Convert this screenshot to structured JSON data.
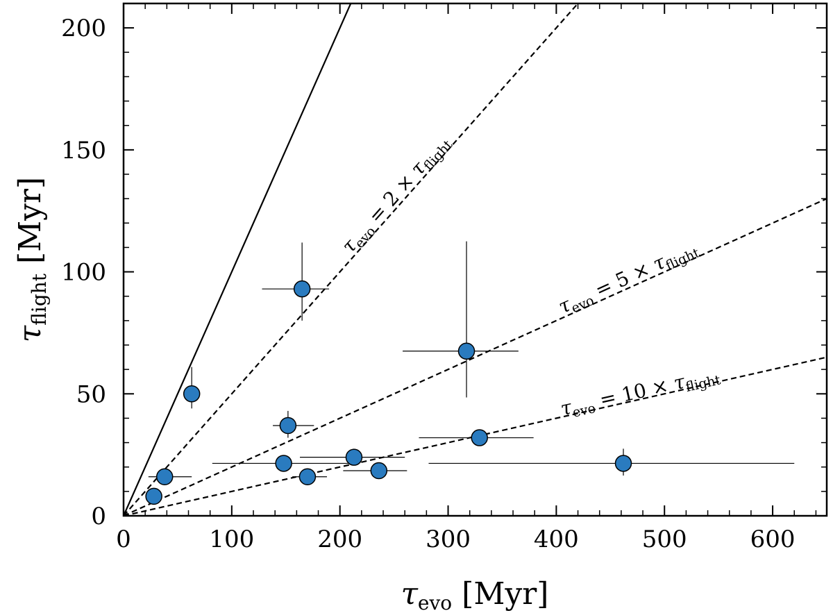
{
  "chart_data": {
    "type": "scatter",
    "title": "",
    "xlim": [
      0,
      650
    ],
    "ylim": [
      0,
      210
    ],
    "xticks": [
      0,
      100,
      200,
      300,
      400,
      500,
      600
    ],
    "yticks": [
      0,
      50,
      100,
      150,
      200
    ],
    "xlabel": {
      "sym": "τ",
      "sub": "evo",
      "unit": "[Myr]"
    },
    "ylabel": {
      "sym": "τ",
      "sub": "flight",
      "unit": "[Myr]"
    },
    "reference_lines": [
      {
        "ratio": 1,
        "style": "solid",
        "label": null
      },
      {
        "ratio": 2,
        "style": "dashed",
        "label": {
          "lhs": "τ",
          "lhs_sub": "evo",
          "op": " = 2 × ",
          "rhs": "τ",
          "rhs_sub": "flight"
        }
      },
      {
        "ratio": 5,
        "style": "dashed",
        "label": {
          "lhs": "τ",
          "lhs_sub": "evo",
          "op": " = 5 × ",
          "rhs": "τ",
          "rhs_sub": "flight"
        }
      },
      {
        "ratio": 10,
        "style": "dashed",
        "label": {
          "lhs": "τ",
          "lhs_sub": "evo",
          "op": " = 10 × ",
          "rhs": "τ",
          "rhs_sub": "flight"
        }
      }
    ],
    "points": [
      {
        "x": 28,
        "y": 8,
        "xerr": [
          0,
          0
        ],
        "yerr": [
          0,
          0
        ]
      },
      {
        "x": 38,
        "y": 16,
        "xerr": [
          15,
          25
        ],
        "yerr": [
          0,
          0
        ]
      },
      {
        "x": 63,
        "y": 50,
        "xerr": [
          0,
          0
        ],
        "yerr": [
          6,
          11
        ]
      },
      {
        "x": 165,
        "y": 93,
        "xerr": [
          37,
          25
        ],
        "yerr": [
          13,
          19
        ]
      },
      {
        "x": 152,
        "y": 37,
        "xerr": [
          14,
          24
        ],
        "yerr": [
          5,
          6
        ]
      },
      {
        "x": 148,
        "y": 21.5,
        "xerr": [
          66,
          70
        ],
        "yerr": [
          0,
          0
        ]
      },
      {
        "x": 170,
        "y": 16,
        "xerr": [
          14,
          18
        ],
        "yerr": [
          0,
          0
        ]
      },
      {
        "x": 213,
        "y": 24,
        "xerr": [
          50,
          47
        ],
        "yerr": [
          0,
          0
        ]
      },
      {
        "x": 236,
        "y": 18.5,
        "xerr": [
          33,
          26
        ],
        "yerr": [
          0,
          0
        ]
      },
      {
        "x": 317,
        "y": 67.5,
        "xerr": [
          59,
          48
        ],
        "yerr": [
          19,
          45
        ]
      },
      {
        "x": 329,
        "y": 32,
        "xerr": [
          56,
          50
        ],
        "yerr": [
          0,
          3
        ]
      },
      {
        "x": 462,
        "y": 21.5,
        "xerr": [
          180,
          158
        ],
        "yerr": [
          5,
          6
        ]
      }
    ],
    "marker_color": "#2a7bbf"
  }
}
